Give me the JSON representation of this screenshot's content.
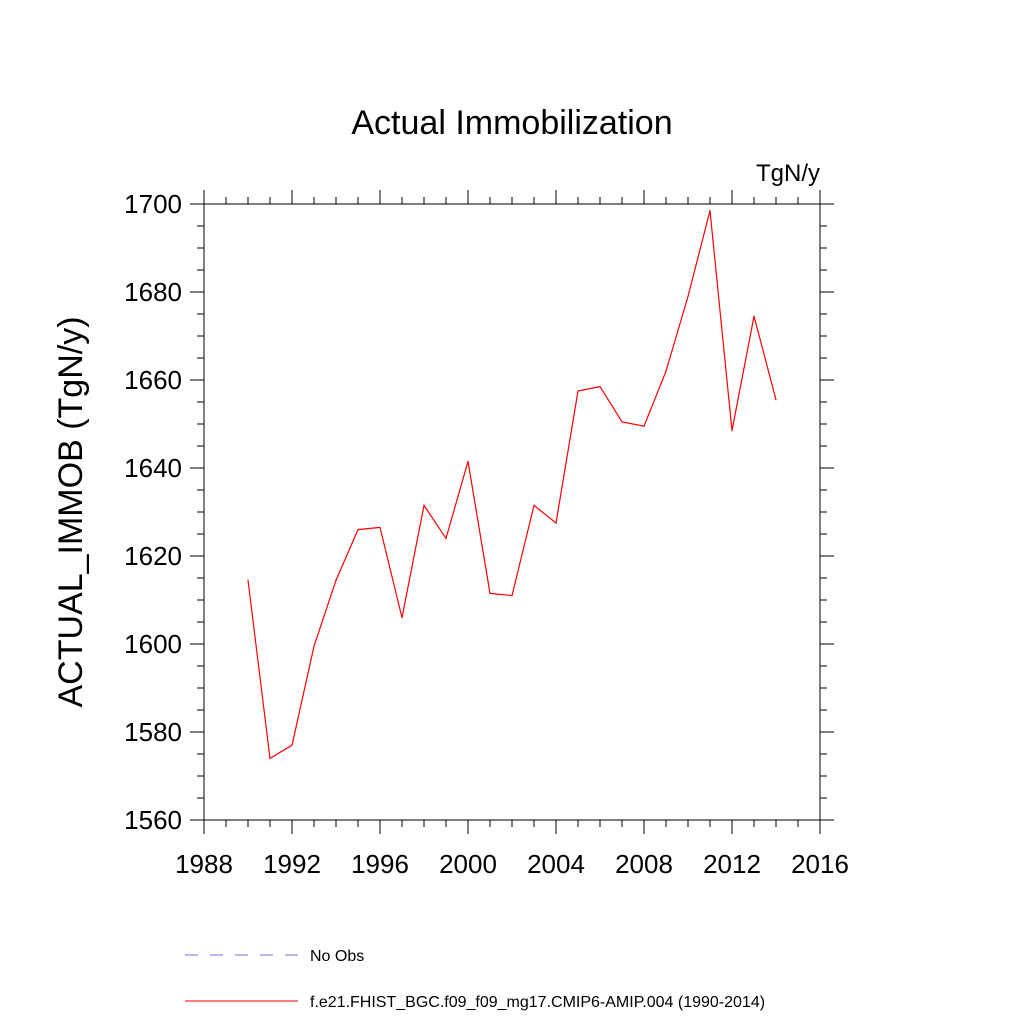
{
  "chart_data": {
    "type": "line",
    "title": "Actual Immobilization",
    "units_label": "TgN/y",
    "ylabel": "ACTUAL_IMMOB  (TgN/y)",
    "xlabel": "",
    "xlim": [
      1988,
      2016
    ],
    "ylim": [
      1560,
      1700
    ],
    "x_ticks": [
      1988,
      1992,
      1996,
      2000,
      2004,
      2008,
      2012,
      2016
    ],
    "y_ticks": [
      1560,
      1580,
      1600,
      1620,
      1640,
      1660,
      1680,
      1700
    ],
    "x_minor_step": 1,
    "y_minor_step": 5,
    "grid": false,
    "legend_position": "bottom",
    "series": [
      {
        "name": "f.e21.FHIST_BGC.f09_f09_mg17.CMIP6-AMIP.004 (1990-2014)",
        "color": "#ff0000",
        "style": "solid",
        "x": [
          1990,
          1991,
          1992,
          1993,
          1994,
          1995,
          1996,
          1997,
          1998,
          1999,
          2000,
          2001,
          2002,
          2003,
          2004,
          2005,
          2006,
          2007,
          2008,
          2009,
          2010,
          2011,
          2012,
          2013,
          2014
        ],
        "values": [
          1614.5,
          1574.0,
          1577.0,
          1599.5,
          1614.5,
          1626.0,
          1626.5,
          1606.0,
          1631.5,
          1624.0,
          1641.5,
          1611.5,
          1611.0,
          1631.5,
          1627.5,
          1657.5,
          1658.5,
          1650.5,
          1649.5,
          1662.0,
          1679.0,
          1698.5,
          1648.5,
          1674.5,
          1655.5
        ]
      }
    ],
    "legend": [
      {
        "label": "No Obs",
        "color": "#7b68ee",
        "style": "dashed"
      },
      {
        "label": "f.e21.FHIST_BGC.f09_f09_mg17.CMIP6-AMIP.004 (1990-2014)",
        "color": "#ff0000",
        "style": "solid"
      }
    ]
  }
}
